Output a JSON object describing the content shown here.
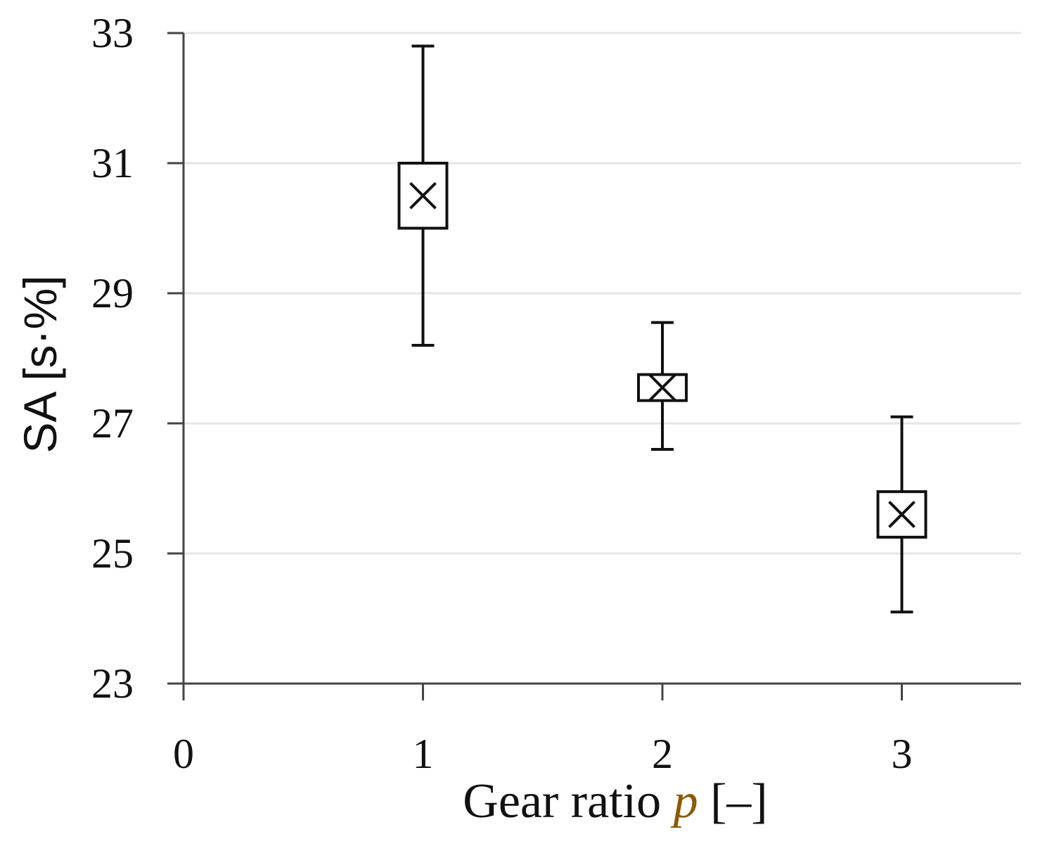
{
  "chart_data": {
    "type": "scatter",
    "xlabel_text": "Gear ratio ",
    "xlabel_var": "p",
    "xlabel_unit": " [–]",
    "ylabel": "SA [s·%]",
    "xlim": [
      0,
      3.5
    ],
    "ylim": [
      23,
      33
    ],
    "x_ticks": [
      0,
      1,
      2,
      3
    ],
    "y_ticks": [
      23,
      25,
      27,
      29,
      31,
      33
    ],
    "grid": "horizontal",
    "series": [
      {
        "points": [
          {
            "x": 1,
            "mean": 30.5,
            "q1": 30.0,
            "q3": 31.0,
            "min": 28.2,
            "max": 32.8
          },
          {
            "x": 2,
            "mean": 27.55,
            "q1": 27.35,
            "q3": 27.75,
            "min": 26.6,
            "max": 28.55
          },
          {
            "x": 3,
            "mean": 25.6,
            "q1": 25.25,
            "q3": 25.95,
            "min": 24.1,
            "max": 27.1
          }
        ]
      }
    ],
    "colors": {
      "axis": "#444444",
      "grid": "#e6e6e6",
      "mark": "#111111",
      "box_fill": "#ffffff"
    }
  }
}
